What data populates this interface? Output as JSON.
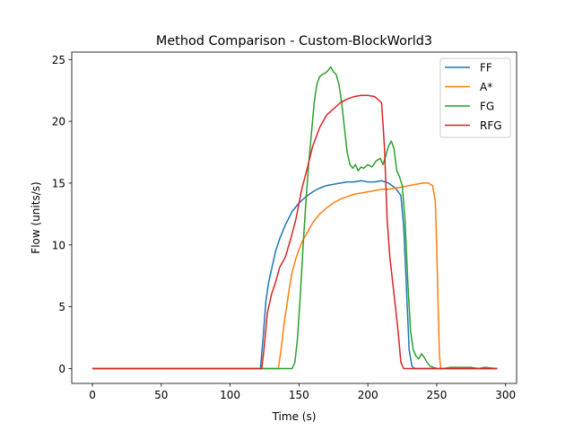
{
  "chart_data": {
    "type": "line",
    "title": "Method Comparison - Custom-BlockWorld3",
    "xlabel": "Time (s)",
    "ylabel": "Flow (units/s)",
    "xlim": [
      -15,
      308
    ],
    "ylim": [
      -1.2,
      25.6
    ],
    "xticks": [
      0,
      50,
      100,
      150,
      200,
      250,
      300
    ],
    "yticks": [
      0,
      5,
      10,
      15,
      20,
      25
    ],
    "grid": false,
    "legend": "top-right",
    "series": [
      {
        "name": "FF",
        "color": "#1f77b4",
        "x": [
          0,
          122,
          124,
          126,
          128,
          130,
          133,
          136,
          140,
          145,
          150,
          155,
          160,
          165,
          170,
          175,
          180,
          185,
          190,
          195,
          200,
          205,
          210,
          215,
          220,
          224,
          226,
          228,
          230,
          232,
          234,
          294
        ],
        "y": [
          0,
          0,
          2.5,
          5.5,
          7.0,
          8.0,
          9.5,
          10.5,
          11.6,
          12.7,
          13.4,
          13.9,
          14.3,
          14.6,
          14.8,
          14.9,
          15.0,
          15.1,
          15.1,
          15.2,
          15.1,
          15.1,
          15.2,
          15.0,
          14.6,
          14.0,
          11.5,
          6.5,
          1.5,
          0.2,
          0,
          0
        ]
      },
      {
        "name": "A*",
        "color": "#ff7f0e",
        "x": [
          0,
          135,
          137,
          139,
          141,
          143,
          145,
          148,
          152,
          156,
          160,
          165,
          170,
          175,
          180,
          185,
          190,
          195,
          200,
          205,
          210,
          215,
          220,
          225,
          230,
          235,
          240,
          244,
          247,
          249,
          250,
          251,
          252,
          253,
          294
        ],
        "y": [
          0,
          0,
          1.5,
          3.5,
          5.0,
          6.5,
          7.8,
          9.0,
          10.2,
          11.0,
          11.8,
          12.5,
          13.0,
          13.4,
          13.7,
          13.9,
          14.1,
          14.2,
          14.3,
          14.4,
          14.5,
          14.5,
          14.6,
          14.7,
          14.8,
          14.9,
          15.0,
          15.0,
          14.8,
          13.5,
          10.0,
          5.0,
          1.0,
          0,
          0
        ]
      },
      {
        "name": "FG",
        "color": "#2ca02c",
        "x": [
          0,
          145,
          147,
          149,
          151,
          153,
          155,
          157,
          159,
          161,
          163,
          165,
          167,
          169,
          171,
          173,
          175,
          177,
          179,
          181,
          183,
          185,
          187,
          189,
          191,
          193,
          195,
          197,
          200,
          203,
          206,
          209,
          211,
          213,
          215,
          217,
          219,
          221,
          223,
          225,
          227,
          229,
          231,
          233,
          235,
          237,
          239,
          241,
          243,
          245,
          250,
          255,
          260,
          265,
          270,
          275,
          280,
          285,
          294
        ],
        "y": [
          0,
          0,
          0.5,
          2.5,
          6.0,
          10.0,
          13.5,
          16.5,
          19.0,
          21.5,
          23.0,
          23.6,
          23.8,
          23.9,
          24.1,
          24.4,
          24.0,
          23.8,
          23.0,
          21.5,
          19.5,
          17.5,
          16.5,
          16.2,
          16.5,
          16.0,
          16.3,
          16.2,
          16.5,
          16.3,
          16.8,
          17.0,
          16.5,
          17.2,
          18.0,
          18.4,
          17.8,
          16.0,
          15.5,
          14.8,
          12.0,
          7.0,
          3.0,
          1.5,
          1.0,
          0.8,
          1.2,
          0.9,
          0.5,
          0.2,
          0,
          0,
          0.1,
          0.1,
          0.1,
          0.1,
          0,
          0.1,
          0
        ]
      },
      {
        "name": "RFG",
        "color": "#d62728",
        "x": [
          0,
          123,
          125,
          127,
          130,
          133,
          136,
          140,
          144,
          148,
          152,
          156,
          160,
          165,
          170,
          175,
          180,
          185,
          190,
          195,
          200,
          205,
          210,
          212,
          214,
          216,
          218,
          220,
          222,
          224,
          226,
          294
        ],
        "y": [
          0,
          0,
          2.0,
          4.5,
          6.0,
          7.0,
          8.2,
          9.0,
          10.5,
          12.2,
          14.5,
          16.2,
          18.0,
          19.5,
          20.5,
          21.0,
          21.5,
          21.8,
          22.0,
          22.1,
          22.1,
          22.0,
          21.5,
          18.0,
          12.0,
          9.0,
          7.0,
          5.0,
          3.0,
          0.5,
          0,
          0
        ]
      }
    ]
  }
}
